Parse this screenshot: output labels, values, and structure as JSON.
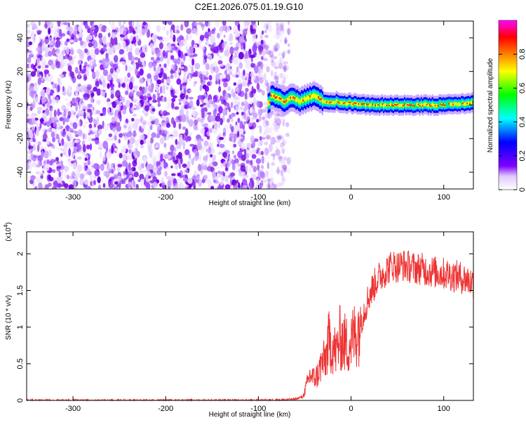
{
  "title": "C2E1.2026.075.01.19.G10",
  "chart_data": [
    {
      "type": "heatmap",
      "xlabel": "Height of straight line (km)",
      "ylabel": "Frequency (Hz)",
      "xlim": [
        -350,
        132
      ],
      "ylim": [
        -50,
        50
      ],
      "xticks": [
        -300,
        -200,
        -100,
        0,
        100
      ],
      "yticks": [
        -40,
        -20,
        0,
        20,
        40
      ],
      "noise_region_x": [
        -350,
        -75
      ],
      "signal_ridge": {
        "x": [
          -88,
          -80,
          -72,
          -64,
          -56,
          -48,
          -40,
          -32,
          -24,
          -16,
          -8,
          0,
          20,
          40,
          60,
          80,
          100,
          120,
          132
        ],
        "frequency": [
          6,
          4,
          2,
          5,
          2,
          4,
          6,
          3,
          1,
          2,
          1,
          1,
          0,
          0,
          0,
          0,
          0,
          1,
          1
        ]
      },
      "colorbar": {
        "label": "Normalized spectral amplitude",
        "range": [
          0,
          1
        ],
        "ticks": [
          0.0,
          0.2,
          0.4,
          0.6,
          0.8
        ],
        "colors": [
          "#ffffff",
          "#7f00ff",
          "#0000ff",
          "#00ffff",
          "#00ff00",
          "#ffff00",
          "#ff8000",
          "#ff0000",
          "#ff00ff"
        ]
      }
    },
    {
      "type": "line",
      "xlabel": "Height of straight line (km)",
      "ylabel": "SNR (10 * v/v)",
      "yscale_label": "(x10",
      "yscale_exp": "4",
      "yscale_close": ")",
      "xlim": [
        -350,
        132
      ],
      "ylim": [
        0,
        2.3
      ],
      "xticks": [
        -300,
        -200,
        -100,
        0,
        100
      ],
      "yticks": [
        0.0,
        0.5,
        1.0,
        1.5,
        2.0
      ],
      "line_color": "#ee3333",
      "series": [
        {
          "x": [
            -350,
            -300,
            -250,
            -200,
            -150,
            -100,
            -70,
            -60,
            -52,
            -48,
            -44,
            -40,
            -36,
            -32,
            -28,
            -24,
            -20,
            -16,
            -12,
            -8,
            -4,
            0,
            4,
            8,
            12,
            16,
            20,
            24,
            28,
            32,
            36,
            40,
            45,
            50,
            55,
            60,
            65,
            70,
            75,
            80,
            85,
            90,
            95,
            100,
            105,
            110,
            115,
            120,
            125,
            132
          ],
          "values": [
            0.0,
            0.0,
            0.0,
            0.0,
            0.0,
            0.0,
            0.01,
            0.02,
            0.05,
            0.2,
            0.35,
            0.3,
            0.35,
            0.5,
            0.55,
            0.8,
            0.75,
            0.65,
            0.85,
            0.8,
            0.75,
            0.8,
            0.9,
            1.0,
            1.15,
            1.3,
            1.45,
            1.55,
            1.65,
            1.7,
            1.75,
            1.8,
            1.85,
            1.82,
            1.85,
            1.83,
            1.82,
            1.8,
            1.8,
            1.78,
            1.76,
            1.75,
            1.74,
            1.73,
            1.72,
            1.7,
            1.69,
            1.67,
            1.65,
            1.6
          ]
        }
      ]
    }
  ]
}
